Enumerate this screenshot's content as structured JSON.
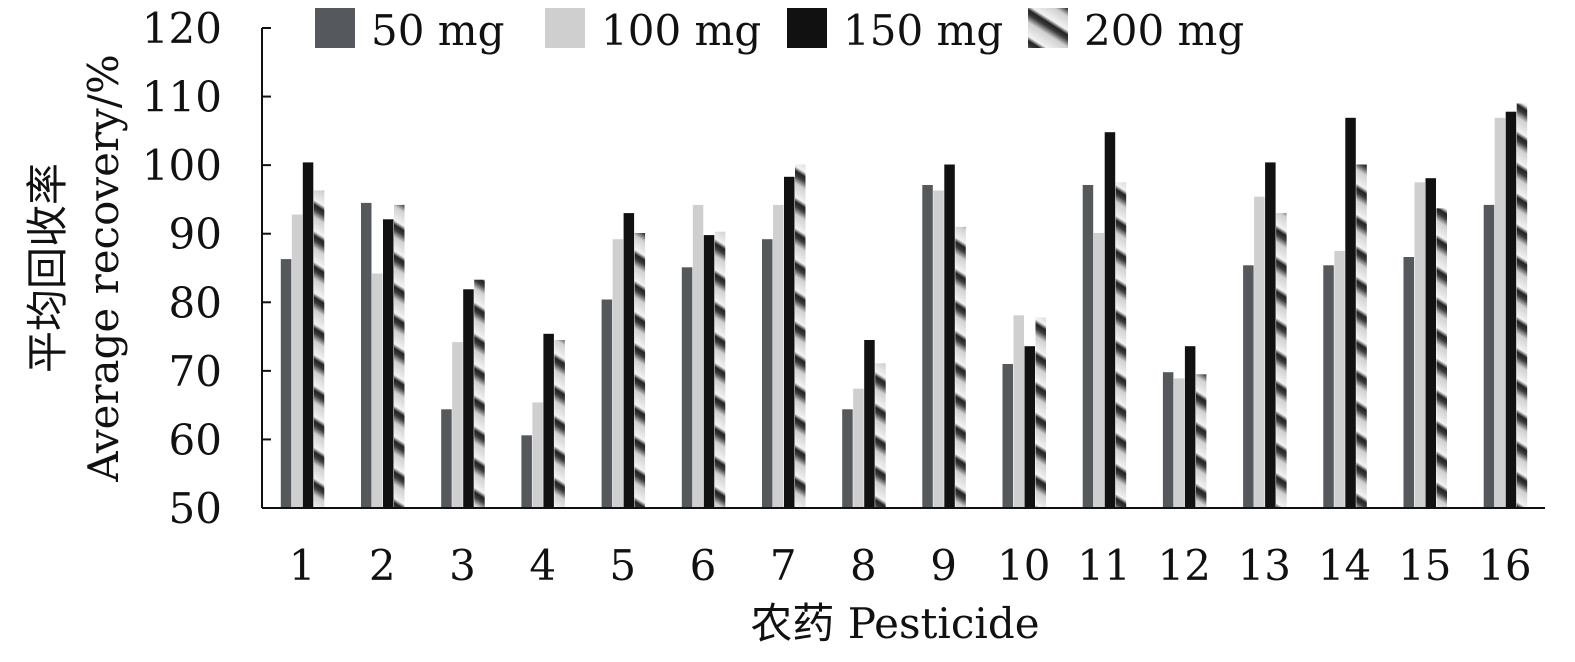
{
  "chart_data": {
    "type": "bar",
    "title": "",
    "xlabel": "农药 Pesticide",
    "ylabel_cn": "平均回收率",
    "ylabel_en": "Average recovery/%",
    "ylim": [
      50,
      120
    ],
    "yticks": [
      50,
      60,
      70,
      80,
      90,
      100,
      110,
      120
    ],
    "grid": false,
    "legend_position": "top",
    "categories": [
      "1",
      "2",
      "3",
      "4",
      "5",
      "6",
      "7",
      "8",
      "9",
      "10",
      "11",
      "12",
      "13",
      "14",
      "15",
      "16"
    ],
    "series": [
      {
        "name": "50 mg",
        "fill": "#55585c",
        "values": [
          86.3,
          94.5,
          64.4,
          60.6,
          80.4,
          85.1,
          89.2,
          64.4,
          97.1,
          71.0,
          97.1,
          69.8,
          85.4,
          85.4,
          86.6,
          94.2
        ]
      },
      {
        "name": "100 mg",
        "fill": "#cfcfcf",
        "values": [
          92.8,
          84.2,
          74.2,
          65.4,
          89.2,
          94.2,
          94.2,
          67.4,
          96.3,
          78.1,
          90.1,
          68.9,
          95.4,
          87.5,
          97.5,
          106.9
        ]
      },
      {
        "name": "150 mg",
        "fill": "#111111",
        "values": [
          100.4,
          92.1,
          81.9,
          75.4,
          93.0,
          89.8,
          98.3,
          74.5,
          100.1,
          73.6,
          104.8,
          73.6,
          100.4,
          106.9,
          98.1,
          107.8
        ]
      },
      {
        "name": "200 mg",
        "fill": "pattern",
        "values": [
          96.3,
          94.2,
          83.3,
          74.5,
          90.1,
          90.3,
          100.1,
          71.1,
          91.0,
          77.8,
          97.5,
          69.5,
          93.0,
          100.1,
          93.7,
          109.0
        ]
      }
    ]
  }
}
